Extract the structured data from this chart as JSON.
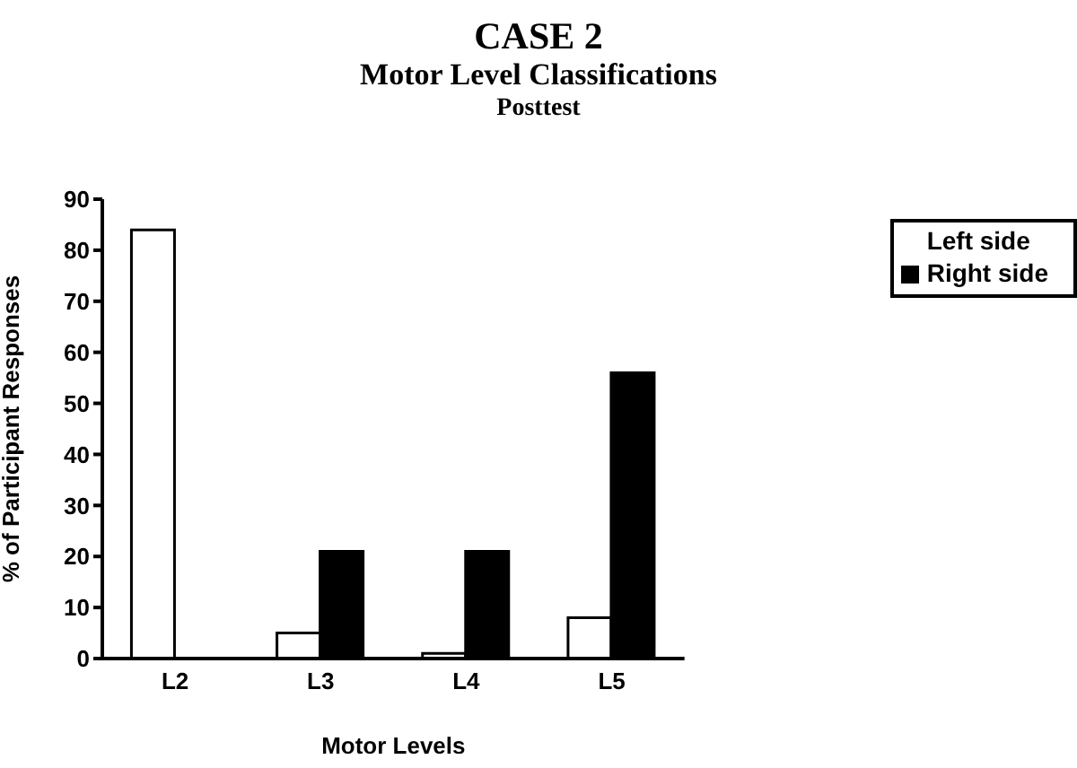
{
  "chart_data": {
    "type": "bar",
    "title": "CASE 2",
    "subtitle": "Motor Level Classifications",
    "annotations": [
      "Posttest"
    ],
    "xlabel": "Motor Levels",
    "ylabel": "% of Participant Responses",
    "categories": [
      "L2",
      "L3",
      "L4",
      "L5"
    ],
    "series": [
      {
        "name": "Left side",
        "color": "#ffffff",
        "values": [
          84,
          5,
          1,
          8
        ]
      },
      {
        "name": "Right side",
        "color": "#000000",
        "values": [
          0,
          21,
          21,
          56
        ]
      }
    ],
    "ylim": [
      0,
      90
    ],
    "yticks": [
      0,
      10,
      20,
      30,
      40,
      50,
      60,
      70,
      80,
      90
    ],
    "grid": false,
    "legend": "top right"
  }
}
